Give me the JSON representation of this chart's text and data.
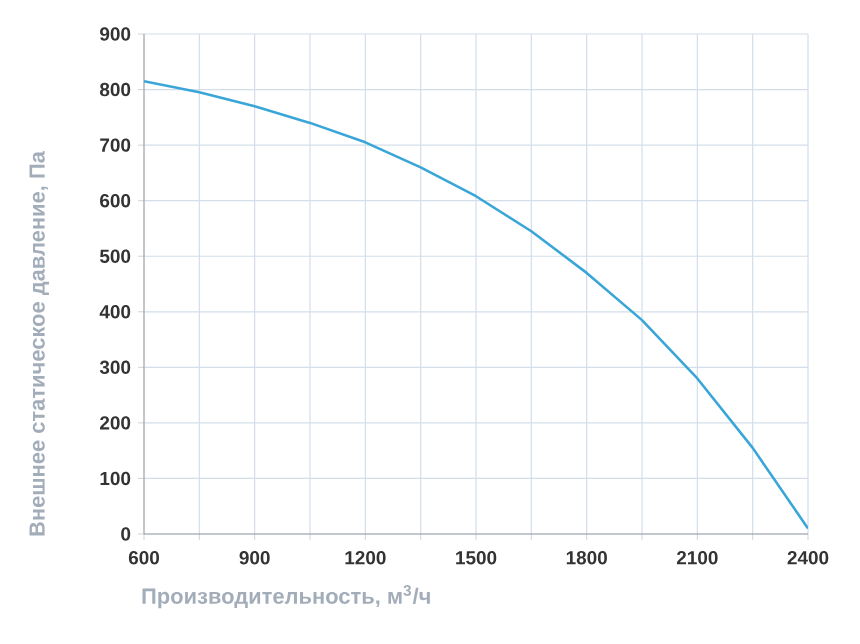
{
  "chart_data": {
    "type": "line",
    "xlabel": "Производительность, м$^{3}$/ч",
    "ylabel": "Внешнее статическое давление, Па",
    "x": [
      600,
      750,
      900,
      1050,
      1200,
      1350,
      1500,
      1650,
      1800,
      1950,
      2100,
      2250,
      2400
    ],
    "series": [
      {
        "color": "#3aa6d8",
        "values": [
          815,
          795,
          770,
          740,
          705,
          660,
          608,
          545,
          470,
          385,
          280,
          155,
          10
        ]
      }
    ],
    "xlim": [
      600,
      2400
    ],
    "xticks": [
      600,
      {
        "value": 750,
        "label": null
      },
      900,
      {
        "value": 1050,
        "label": null
      },
      1200,
      {
        "value": 1350,
        "label": null
      },
      1500,
      {
        "value": 1650,
        "label": null
      },
      1800,
      {
        "value": 1950,
        "label": null
      },
      2100,
      {
        "value": 2250,
        "label": null
      },
      2400
    ],
    "ylim": [
      0,
      900
    ],
    "yticks": [
      0,
      100,
      200,
      300,
      400,
      500,
      600,
      700,
      800,
      900
    ],
    "grid": true,
    "marker": "none",
    "line_style": "solid"
  }
}
